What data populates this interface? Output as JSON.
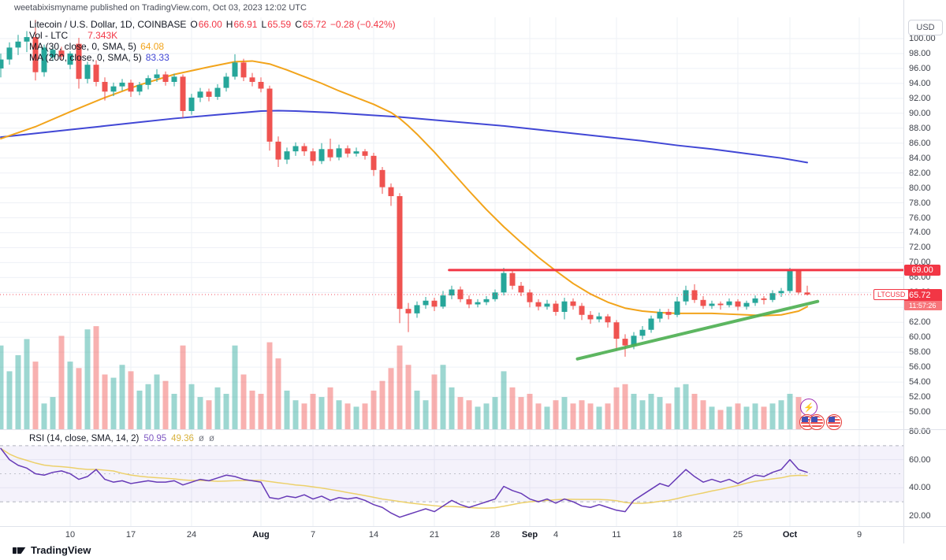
{
  "status_bar": {
    "text": "weetabixismyname published on TradingView.com, Oct 03, 2023 12:02 UTC"
  },
  "legend": {
    "symbol_title": "Litecoin / U.S. Dollar, 1D, COINBASE",
    "o_label": "O",
    "o_value": "66.00",
    "h_label": "H",
    "h_value": "66.91",
    "l_label": "L",
    "l_value": "65.59",
    "c_label": "C",
    "c_value": "65.72",
    "change": "−0.28 (−0.42%)",
    "vol_title": "Vol - LTC",
    "vol_value": "7.343K",
    "ma30_title": "MA (30, close, 0, SMA, 5)",
    "ma30_value": "64.08",
    "ma200_title": "MA (200, close, 0, SMA, 5)",
    "ma200_value": "83.33"
  },
  "rsi_legend": {
    "title": "RSI (14, close, SMA, 14, 2)",
    "value1": "50.95",
    "value2": "49.36",
    "empty1": "ø",
    "empty2": "ø"
  },
  "price_axis": {
    "currency_button": "USD",
    "resistance_label": "69.00",
    "last_price_label": "65.72",
    "countdown": "11:57:26",
    "symbol_tag": "LTCUSD"
  },
  "footer": {
    "brand": "TradingView"
  },
  "colors": {
    "up": "#26a69a",
    "down": "#ef5350",
    "vol_up": "rgba(38,166,154,0.45)",
    "vol_down": "rgba(239,83,80,0.45)",
    "ma30": "#f2a41b",
    "ma200": "#4147d5",
    "rsi": "#673ab7",
    "rsi_ma": "#ecd06a",
    "line_red": "#f23645",
    "trend_green": "#4caf50",
    "grid": "#eef0f6",
    "band_fill": "rgba(116,83,208,0.08)",
    "band_edge": "#a0a3ae"
  },
  "chart_data": {
    "type": "candlestick",
    "symbol": "LTCUSD",
    "interval": "1D",
    "exchange": "COINBASE",
    "price_axis": {
      "range": [
        50,
        100
      ],
      "tick_step": 2,
      "ticks": [
        "100.00",
        "98.00",
        "96.00",
        "94.00",
        "92.00",
        "90.00",
        "88.00",
        "86.00",
        "84.00",
        "82.00",
        "80.00",
        "78.00",
        "76.00",
        "74.00",
        "72.00",
        "70.00",
        "68.00",
        "66.00",
        "64.00",
        "62.00",
        "60.00",
        "58.00",
        "56.00",
        "54.00",
        "52.00",
        "50.00"
      ]
    },
    "rsi_axis": {
      "range": [
        15,
        80
      ],
      "ticks": [
        "80.00",
        "60.00",
        "40.00",
        "20.00"
      ],
      "band": [
        30,
        70
      ],
      "midline": 50
    },
    "time_axis": {
      "ticks": [
        {
          "label": "10",
          "day": 8,
          "bold": false
        },
        {
          "label": "17",
          "day": 15,
          "bold": false
        },
        {
          "label": "24",
          "day": 22,
          "bold": false
        },
        {
          "label": "Aug",
          "day": 30,
          "bold": true
        },
        {
          "label": "7",
          "day": 36,
          "bold": false
        },
        {
          "label": "14",
          "day": 43,
          "bold": false
        },
        {
          "label": "21",
          "day": 50,
          "bold": false
        },
        {
          "label": "28",
          "day": 57,
          "bold": false
        },
        {
          "label": "Sep",
          "day": 61,
          "bold": true
        },
        {
          "label": "4",
          "day": 64,
          "bold": false
        },
        {
          "label": "11",
          "day": 71,
          "bold": false
        },
        {
          "label": "18",
          "day": 78,
          "bold": false
        },
        {
          "label": "25",
          "day": 85,
          "bold": false
        },
        {
          "label": "Oct",
          "day": 91,
          "bold": true
        },
        {
          "label": "9",
          "day": 99,
          "bold": false
        }
      ]
    },
    "ohlc": [
      [
        96.0,
        98.0,
        94.8,
        97.2
      ],
      [
        97.2,
        99.5,
        96.5,
        98.8
      ],
      [
        98.8,
        100.5,
        97.8,
        99.6
      ],
      [
        99.6,
        101.0,
        98.2,
        100.2
      ],
      [
        100.2,
        102.5,
        94.4,
        95.5
      ],
      [
        95.5,
        99.2,
        94.9,
        98.8
      ],
      [
        97.5,
        99.0,
        97.0,
        98.5
      ],
      [
        98.4,
        98.9,
        97.1,
        97.6
      ],
      [
        96.5,
        98.3,
        95.9,
        98.0
      ],
      [
        99.3,
        100.1,
        93.3,
        94.6
      ],
      [
        94.6,
        96.9,
        94.0,
        96.5
      ],
      [
        96.5,
        97.1,
        93.6,
        94.2
      ],
      [
        94.2,
        94.8,
        91.7,
        92.9
      ],
      [
        92.9,
        94.1,
        92.3,
        93.6
      ],
      [
        93.6,
        94.6,
        93.0,
        94.1
      ],
      [
        94.1,
        94.5,
        92.2,
        92.9
      ],
      [
        92.9,
        94.2,
        92.4,
        93.8
      ],
      [
        93.8,
        95.1,
        93.2,
        94.7
      ],
      [
        94.7,
        95.9,
        94.2,
        95.2
      ],
      [
        95.2,
        95.6,
        93.7,
        94.2
      ],
      [
        94.2,
        95.3,
        93.6,
        94.9
      ],
      [
        94.9,
        95.2,
        89.4,
        90.3
      ],
      [
        90.3,
        92.6,
        89.8,
        92.1
      ],
      [
        92.1,
        93.4,
        91.5,
        92.9
      ],
      [
        92.9,
        93.3,
        91.6,
        92.2
      ],
      [
        92.2,
        93.9,
        91.8,
        93.4
      ],
      [
        93.4,
        95.4,
        92.9,
        94.9
      ],
      [
        94.9,
        97.9,
        94.5,
        96.8
      ],
      [
        96.8,
        97.3,
        94.3,
        94.8
      ],
      [
        94.8,
        95.4,
        93.6,
        94.2
      ],
      [
        94.2,
        94.8,
        92.8,
        93.3
      ],
      [
        93.3,
        93.7,
        85.0,
        86.2
      ],
      [
        86.2,
        86.9,
        82.8,
        83.8
      ],
      [
        83.8,
        85.4,
        83.2,
        84.9
      ],
      [
        84.9,
        86.1,
        84.3,
        85.6
      ],
      [
        85.6,
        86.0,
        84.3,
        84.9
      ],
      [
        84.9,
        85.3,
        83.0,
        83.6
      ],
      [
        83.6,
        86.0,
        83.2,
        85.2
      ],
      [
        85.2,
        86.6,
        83.6,
        84.1
      ],
      [
        84.1,
        85.8,
        83.7,
        85.3
      ],
      [
        85.3,
        85.7,
        84.1,
        84.6
      ],
      [
        84.6,
        85.4,
        84.2,
        84.9
      ],
      [
        84.9,
        85.2,
        83.8,
        84.3
      ],
      [
        84.3,
        84.7,
        81.6,
        82.4
      ],
      [
        82.4,
        82.8,
        79.2,
        80.1
      ],
      [
        80.1,
        80.6,
        77.6,
        78.9
      ],
      [
        78.9,
        79.3,
        61.9,
        63.8
      ],
      [
        63.8,
        64.6,
        60.7,
        63.2
      ],
      [
        63.2,
        64.8,
        62.6,
        64.3
      ],
      [
        64.3,
        65.4,
        63.8,
        64.9
      ],
      [
        64.9,
        65.3,
        63.5,
        64.1
      ],
      [
        64.1,
        66.2,
        63.8,
        65.6
      ],
      [
        65.6,
        66.9,
        65.1,
        66.4
      ],
      [
        66.4,
        66.8,
        64.7,
        65.1
      ],
      [
        65.1,
        65.6,
        63.9,
        64.4
      ],
      [
        64.4,
        65.1,
        64.0,
        64.7
      ],
      [
        64.7,
        65.5,
        64.3,
        65.1
      ],
      [
        65.1,
        66.4,
        64.8,
        66.0
      ],
      [
        66.0,
        69.3,
        65.6,
        68.6
      ],
      [
        68.6,
        68.9,
        66.4,
        66.9
      ],
      [
        66.9,
        67.4,
        65.5,
        66.0
      ],
      [
        66.0,
        66.4,
        64.0,
        64.7
      ],
      [
        64.7,
        65.1,
        63.6,
        64.1
      ],
      [
        64.1,
        65.0,
        63.7,
        64.5
      ],
      [
        64.5,
        64.9,
        62.9,
        63.4
      ],
      [
        63.4,
        65.3,
        62.4,
        64.8
      ],
      [
        64.8,
        65.2,
        63.7,
        64.2
      ],
      [
        64.2,
        64.6,
        62.3,
        63.0
      ],
      [
        63.0,
        63.5,
        61.8,
        62.4
      ],
      [
        62.4,
        63.3,
        62.0,
        62.8
      ],
      [
        62.8,
        63.1,
        61.3,
        62.0
      ],
      [
        62.0,
        62.3,
        58.2,
        59.8
      ],
      [
        59.8,
        60.4,
        57.4,
        58.9
      ],
      [
        58.9,
        60.7,
        58.4,
        60.2
      ],
      [
        60.2,
        61.5,
        59.7,
        61.0
      ],
      [
        61.0,
        62.9,
        60.6,
        62.5
      ],
      [
        62.5,
        63.8,
        62.0,
        63.4
      ],
      [
        63.4,
        63.8,
        62.4,
        63.0
      ],
      [
        63.0,
        65.4,
        62.7,
        64.8
      ],
      [
        64.8,
        66.9,
        64.3,
        66.3
      ],
      [
        66.3,
        67.1,
        64.6,
        65.0
      ],
      [
        65.0,
        65.5,
        63.8,
        64.2
      ],
      [
        64.2,
        64.9,
        63.8,
        64.5
      ],
      [
        64.5,
        64.8,
        63.7,
        64.3
      ],
      [
        64.3,
        65.2,
        64.0,
        64.8
      ],
      [
        64.8,
        65.1,
        63.6,
        64.1
      ],
      [
        64.1,
        64.9,
        63.7,
        64.6
      ],
      [
        64.6,
        65.6,
        64.2,
        65.2
      ],
      [
        65.2,
        65.5,
        64.4,
        65.0
      ],
      [
        65.0,
        66.3,
        64.7,
        65.9
      ],
      [
        65.9,
        66.6,
        65.4,
        66.2
      ],
      [
        66.2,
        69.3,
        65.9,
        68.9
      ],
      [
        68.9,
        69.1,
        65.8,
        66.0
      ],
      [
        66.0,
        66.91,
        65.59,
        65.72
      ]
    ],
    "volumes": [
      26,
      18,
      23,
      28,
      21,
      8,
      10,
      29,
      21,
      19,
      31,
      32,
      17,
      16,
      20,
      18,
      12,
      14,
      17,
      15,
      11,
      26,
      14,
      10,
      9,
      13,
      11,
      26,
      17,
      12,
      11,
      27,
      22,
      12,
      9,
      8,
      11,
      10,
      13,
      9,
      8,
      7,
      8,
      12,
      15,
      19,
      26,
      20,
      12,
      9,
      17,
      20,
      13,
      10,
      9,
      7,
      8,
      10,
      18,
      13,
      10,
      11,
      8,
      7,
      9,
      10,
      8,
      9,
      8,
      7,
      8,
      13,
      14,
      11,
      9,
      11,
      10,
      8,
      13,
      14,
      11,
      9,
      7,
      6,
      7,
      8,
      7,
      8,
      7,
      8,
      9,
      11,
      10,
      7.3
    ],
    "rsi": [
      68,
      60,
      56,
      54,
      50,
      49,
      51,
      52,
      50,
      46,
      48,
      53,
      46,
      44,
      45,
      43,
      44,
      45,
      44,
      44,
      45,
      42,
      44,
      46,
      45,
      47,
      49,
      48,
      46,
      45,
      44,
      33,
      32,
      34,
      33,
      35,
      32,
      34,
      31,
      33,
      32,
      33,
      31,
      28,
      26,
      22,
      19,
      21,
      23,
      25,
      23,
      27,
      31,
      28,
      26,
      28,
      30,
      32,
      41,
      38,
      36,
      32,
      30,
      32,
      29,
      32,
      30,
      27,
      26,
      28,
      26,
      24,
      23,
      31,
      35,
      39,
      43,
      41,
      47,
      53,
      48,
      44,
      46,
      44,
      46,
      43,
      46,
      49,
      48,
      51,
      53,
      60,
      53,
      51
    ],
    "ma30_points": [
      [
        0,
        86.6
      ],
      [
        4,
        88.2
      ],
      [
        8,
        90.2
      ],
      [
        12,
        92.1
      ],
      [
        16,
        93.8
      ],
      [
        20,
        95.2
      ],
      [
        24,
        96.2
      ],
      [
        27,
        96.9
      ],
      [
        29,
        97.0
      ],
      [
        31,
        96.6
      ],
      [
        33,
        95.8
      ],
      [
        35,
        94.9
      ],
      [
        37,
        94.0
      ],
      [
        39,
        93.0
      ],
      [
        41,
        92.1
      ],
      [
        43,
        91.2
      ],
      [
        45,
        90.1
      ],
      [
        46,
        89.3
      ],
      [
        47,
        88.3
      ],
      [
        48,
        87.2
      ],
      [
        50,
        84.8
      ],
      [
        52,
        82.2
      ],
      [
        54,
        79.6
      ],
      [
        56,
        77.1
      ],
      [
        58,
        74.8
      ],
      [
        60,
        72.7
      ],
      [
        62,
        70.7
      ],
      [
        64,
        68.9
      ],
      [
        66,
        67.2
      ],
      [
        68,
        65.8
      ],
      [
        70,
        64.7
      ],
      [
        72,
        63.9
      ],
      [
        74,
        63.5
      ],
      [
        76,
        63.3
      ],
      [
        78,
        63.2
      ],
      [
        80,
        63.2
      ],
      [
        82,
        63.2
      ],
      [
        84,
        63.1
      ],
      [
        86,
        63.0
      ],
      [
        88,
        62.9
      ],
      [
        90,
        63.0
      ],
      [
        92,
        63.5
      ],
      [
        93,
        64.1
      ]
    ],
    "ma200_points": [
      [
        0,
        86.8
      ],
      [
        4,
        87.3
      ],
      [
        8,
        87.8
      ],
      [
        12,
        88.3
      ],
      [
        16,
        88.8
      ],
      [
        20,
        89.3
      ],
      [
        24,
        89.7
      ],
      [
        28,
        90.1
      ],
      [
        30,
        90.3
      ],
      [
        32,
        90.35
      ],
      [
        34,
        90.3
      ],
      [
        38,
        90.1
      ],
      [
        42,
        89.8
      ],
      [
        46,
        89.5
      ],
      [
        50,
        89.1
      ],
      [
        54,
        88.7
      ],
      [
        58,
        88.3
      ],
      [
        62,
        87.8
      ],
      [
        66,
        87.3
      ],
      [
        70,
        86.8
      ],
      [
        74,
        86.3
      ],
      [
        78,
        85.7
      ],
      [
        82,
        85.2
      ],
      [
        86,
        84.6
      ],
      [
        90,
        84.0
      ],
      [
        93,
        83.4
      ]
    ],
    "resistance_level": 69.0,
    "resistance_start_day": 51.7,
    "last_price": 65.72,
    "trendline": {
      "x1_day": 66.5,
      "y1_price": 57.1,
      "x2_day": 94.2,
      "y2_price": 64.8
    }
  }
}
